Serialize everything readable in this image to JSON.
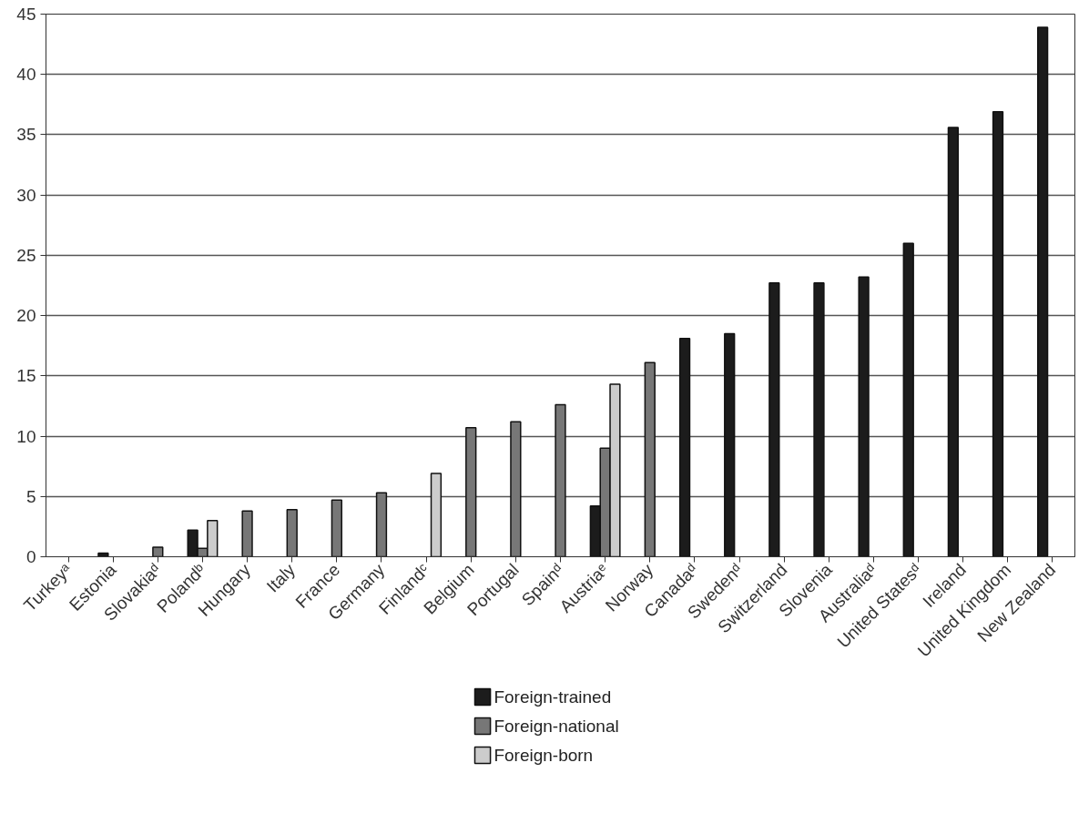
{
  "chart_data": {
    "type": "bar",
    "categories": [
      "Turkeyᵃ",
      "Estonia",
      "Slovakiaᵈ",
      "Polandᵇ",
      "Hungary",
      "Italy",
      "France",
      "Germany",
      "Finlandᶜ",
      "Belgium",
      "Portugal",
      "Spainᵈ",
      "Austriaᵉ",
      "Norway",
      "Canadaᵈ",
      "Swedenᵈ",
      "Switzerland",
      "Slovenia",
      "Australiaᵈ",
      "United Statesᵈ",
      "Ireland",
      "United Kingdom",
      "New Zealand"
    ],
    "series": [
      {
        "name": "Foreign-trained",
        "color": "#1c1c1c",
        "values": [
          null,
          0.3,
          null,
          2.2,
          null,
          null,
          null,
          null,
          null,
          null,
          null,
          null,
          4.2,
          null,
          18.1,
          18.5,
          22.7,
          22.7,
          23.2,
          26.0,
          35.6,
          36.9,
          43.9
        ]
      },
      {
        "name": "Foreign-national",
        "color": "#777777",
        "values": [
          null,
          null,
          0.8,
          0.7,
          3.8,
          3.9,
          4.7,
          5.3,
          null,
          10.7,
          11.2,
          12.6,
          9.0,
          16.1,
          null,
          null,
          null,
          null,
          null,
          null,
          null,
          null,
          null
        ]
      },
      {
        "name": "Foreign-born",
        "color": "#cccccc",
        "values": [
          null,
          null,
          null,
          3.0,
          null,
          null,
          null,
          null,
          6.9,
          null,
          null,
          null,
          14.3,
          null,
          null,
          null,
          null,
          null,
          null,
          null,
          null,
          null,
          null
        ]
      }
    ],
    "ylim": [
      0,
      45
    ],
    "yticks": [
      0,
      5,
      10,
      15,
      20,
      25,
      30,
      35,
      40,
      45
    ],
    "grid": "y",
    "legend": "bottom"
  }
}
